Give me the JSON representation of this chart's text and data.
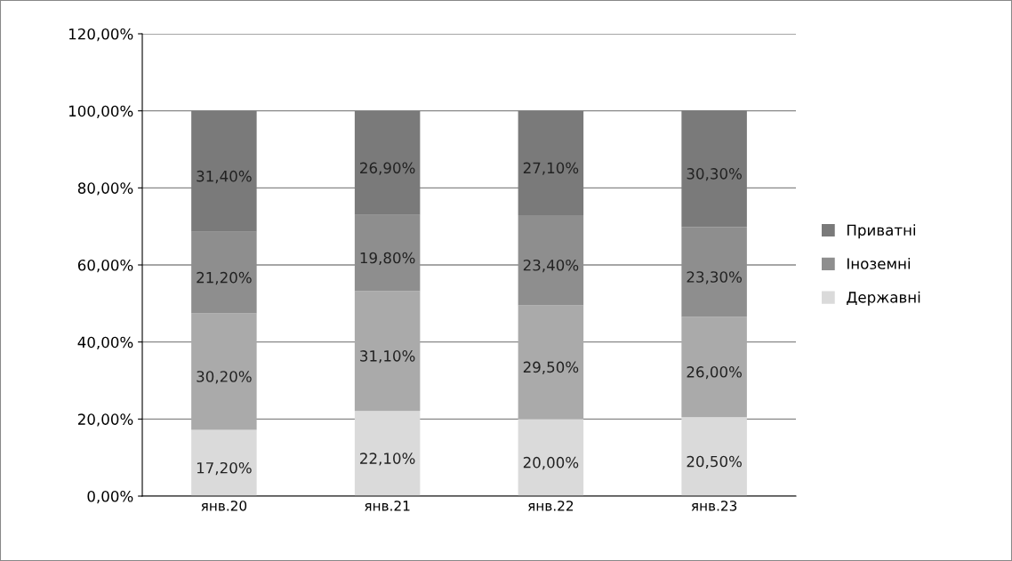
{
  "chart_data": {
    "type": "bar",
    "stacked": true,
    "categories": [
      "янв.20",
      "янв.21",
      "янв.22",
      "янв.23"
    ],
    "series": [
      {
        "name": "Державні",
        "color": "#dadada",
        "values": [
          17.2,
          22.1,
          20.0,
          20.5
        ],
        "value_labels": [
          "17,20%",
          "22,10%",
          "20,00%",
          "20,50%"
        ]
      },
      {
        "color": "#aaaaaa",
        "values": [
          30.2,
          31.1,
          29.5,
          26.0
        ],
        "value_labels": [
          "30,20%",
          "31,10%",
          "29,50%",
          "26,00%"
        ]
      },
      {
        "name": "Іноземні",
        "color": "#8e8e8e",
        "values": [
          21.2,
          19.8,
          23.4,
          23.3
        ],
        "value_labels": [
          "21,20%",
          "19,80%",
          "23,40%",
          "23,30%"
        ]
      },
      {
        "name": "Приватні",
        "color": "#7a7a7a",
        "values": [
          31.4,
          26.9,
          27.1,
          30.3
        ],
        "value_labels": [
          "31,40%",
          "26,90%",
          "27,10%",
          "30,30%"
        ]
      }
    ],
    "ylim": [
      0,
      120
    ],
    "yticks": [
      {
        "value": 0,
        "label": "0,00%"
      },
      {
        "value": 20,
        "label": "20,00%"
      },
      {
        "value": 40,
        "label": "40,00%"
      },
      {
        "value": 60,
        "label": "60,00%"
      },
      {
        "value": 80,
        "label": "80,00%"
      },
      {
        "value": 100,
        "label": "100,00%"
      },
      {
        "value": 120,
        "label": "120,00%"
      }
    ],
    "grid": "y",
    "legend": "right"
  }
}
